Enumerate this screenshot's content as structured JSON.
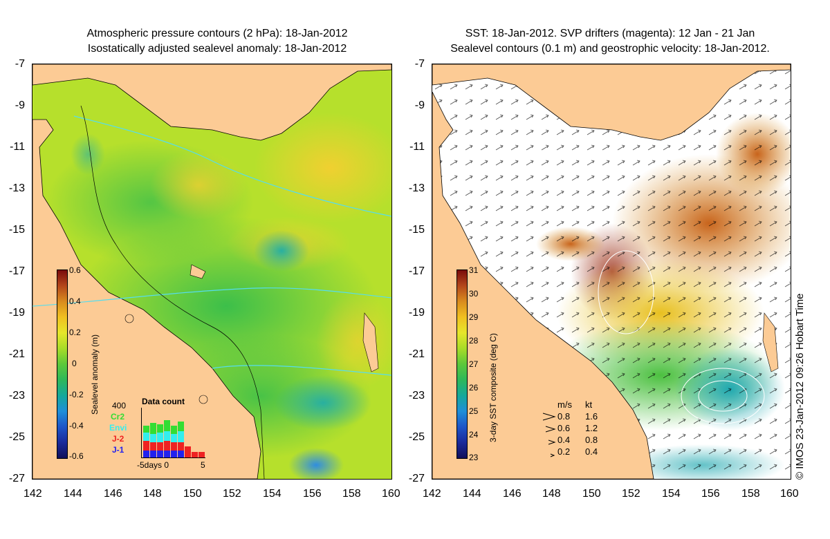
{
  "left_panel": {
    "title_line1": "Atmospheric pressure contours (2 hPa): 18-Jan-2012",
    "title_line2": "Isostatically adjusted sealevel anomaly: 18-Jan-2012",
    "y_ticks": [
      "-7",
      "-9",
      "-11",
      "-13",
      "-15",
      "-17",
      "-19",
      "-21",
      "-23",
      "-25",
      "-27"
    ],
    "x_ticks": [
      "142",
      "144",
      "146",
      "148",
      "150",
      "152",
      "154",
      "156",
      "158",
      "160"
    ],
    "colorbar": {
      "label": "Sealevel anomaly (m)",
      "ticks": [
        "0.6",
        "0.4",
        "0.2",
        "0",
        "-0.2",
        "-0.4",
        "-0.6"
      ],
      "colors": [
        "#7a0b0b",
        "#b4471a",
        "#d98c1e",
        "#f0c020",
        "#e6e62a",
        "#a8dc28",
        "#5cc83a",
        "#2eb85a",
        "#16a89a",
        "#1f8fd8",
        "#1d55c8",
        "#1a2a9a",
        "#10105a"
      ]
    },
    "data_count": {
      "title": "Data count",
      "max_label": "400",
      "x_axis_label": "-5days 0",
      "x_axis_end": "5",
      "satellites": [
        {
          "name": "Cr2",
          "color": "#33dd33"
        },
        {
          "name": "Envi",
          "color": "#33eeee"
        },
        {
          "name": "J-2",
          "color": "#ee2222"
        },
        {
          "name": "J-1",
          "color": "#2222ee"
        }
      ]
    }
  },
  "right_panel": {
    "title_line1": "SST: 18-Jan-2012. SVP drifters (magenta): 12 Jan - 21 Jan",
    "title_line2": "Sealevel contours (0.1 m) and geostrophic velocity: 18-Jan-2012.",
    "y_ticks": [
      "-7",
      "-9",
      "-11",
      "-13",
      "-15",
      "-17",
      "-19",
      "-21",
      "-23",
      "-25",
      "-27"
    ],
    "x_ticks": [
      "142",
      "144",
      "146",
      "148",
      "150",
      "152",
      "154",
      "156",
      "158",
      "160"
    ],
    "colorbar": {
      "label": "3-day SST composite (deg C)",
      "ticks": [
        "31",
        "30",
        "29",
        "28",
        "27",
        "26",
        "25",
        "24",
        "23"
      ],
      "colors": [
        "#7a0b0b",
        "#b4471a",
        "#d98c1e",
        "#f0c020",
        "#e6e62a",
        "#a8dc28",
        "#5cc83a",
        "#2eb85a",
        "#16a89a",
        "#1f8fd8",
        "#1d55c8",
        "#1a2a9a",
        "#10105a"
      ]
    },
    "velocity_legend": {
      "header_ms": "m/s",
      "header_kt": "kt",
      "rows": [
        {
          "ms": "0.8",
          "kt": "1.6"
        },
        {
          "ms": "0.6",
          "kt": "1.2"
        },
        {
          "ms": "0.4",
          "kt": "0.8"
        },
        {
          "ms": "0.2",
          "kt": "0.4"
        }
      ]
    },
    "credit": "© IMOS 23-Jan-2012 09:26 Hobart Time"
  },
  "colors": {
    "land": "#fccb95",
    "coast_line": "#000000",
    "contour_cyan": "#55ddee"
  }
}
